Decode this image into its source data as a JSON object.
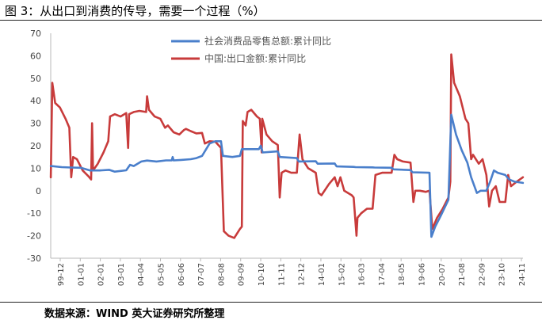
{
  "header": {
    "title": "图 3：从出口到消费的传导，需要一个过程（%）"
  },
  "footer": {
    "source": "数据来源：WIND 英大证券研究所整理"
  },
  "chart_data": {
    "type": "line",
    "title": "图 3：从出口到消费的传导，需要一个过程（%）",
    "xlabel": "",
    "ylabel": "",
    "ylim": [
      -30,
      70
    ],
    "yticks": [
      -30,
      -20,
      -10,
      0,
      10,
      20,
      30,
      40,
      50,
      60,
      70
    ],
    "x_start": 1999.917,
    "x_end": 2024.833,
    "x_tick_labels": [
      "99-12",
      "01-01",
      "02-01",
      "03-01",
      "04-04",
      "05-05",
      "06-06",
      "07-07",
      "08-08",
      "09-09",
      "10-10",
      "11-11",
      "12-12",
      "14-01",
      "15-02",
      "16-03",
      "17-04",
      "18-05",
      "19-06",
      "20-07",
      "21-08",
      "22-09",
      "23-10",
      "24-11"
    ],
    "legend_position": "top-center",
    "series": [
      {
        "name": "社会消费品零售总额:累计同比",
        "color": "#4a7fcb",
        "points": [
          [
            1999.92,
            11
          ],
          [
            2000.5,
            10.5
          ],
          [
            2001.0,
            10.3
          ],
          [
            2001.5,
            10.2
          ],
          [
            2002.0,
            9
          ],
          [
            2002.5,
            9
          ],
          [
            2003.0,
            9.3
          ],
          [
            2003.3,
            8.5
          ],
          [
            2003.9,
            9.1
          ],
          [
            2004.1,
            11.5
          ],
          [
            2004.3,
            11
          ],
          [
            2004.7,
            13
          ],
          [
            2005.0,
            13.4
          ],
          [
            2005.5,
            13
          ],
          [
            2006.0,
            13.5
          ],
          [
            2006.3,
            13.5
          ],
          [
            2006.35,
            15
          ],
          [
            2006.4,
            13.5
          ],
          [
            2006.8,
            13.7
          ],
          [
            2007.3,
            14
          ],
          [
            2007.6,
            14.5
          ],
          [
            2007.9,
            15.5
          ],
          [
            2008.3,
            21
          ],
          [
            2008.6,
            22
          ],
          [
            2008.9,
            22
          ],
          [
            2009.0,
            15.5
          ],
          [
            2009.5,
            15
          ],
          [
            2009.9,
            15.5
          ],
          [
            2010.0,
            18.5
          ],
          [
            2010.5,
            18.5
          ],
          [
            2010.9,
            18.5
          ],
          [
            2011.0,
            20
          ],
          [
            2011.1,
            17
          ],
          [
            2011.9,
            17.5
          ],
          [
            2012.0,
            15
          ],
          [
            2012.9,
            14.5
          ],
          [
            2013.0,
            13
          ],
          [
            2013.9,
            13.1
          ],
          [
            2014.0,
            12
          ],
          [
            2014.9,
            12.1
          ],
          [
            2015.0,
            10.8
          ],
          [
            2015.9,
            10.6
          ],
          [
            2016.0,
            10.5
          ],
          [
            2016.9,
            10.4
          ],
          [
            2017.0,
            10.3
          ],
          [
            2017.9,
            10.2
          ],
          [
            2018.0,
            9.5
          ],
          [
            2018.9,
            9.2
          ],
          [
            2019.0,
            8.2
          ],
          [
            2019.9,
            8
          ],
          [
            2020.0,
            -20.5
          ],
          [
            2020.2,
            -16
          ],
          [
            2020.5,
            -11
          ],
          [
            2020.9,
            -4
          ],
          [
            2021.05,
            33.8
          ],
          [
            2021.3,
            25
          ],
          [
            2021.6,
            18
          ],
          [
            2021.9,
            12.5
          ],
          [
            2022.1,
            6
          ],
          [
            2022.4,
            -1
          ],
          [
            2022.6,
            0
          ],
          [
            2022.9,
            0
          ],
          [
            2023.1,
            4
          ],
          [
            2023.3,
            9
          ],
          [
            2023.5,
            8
          ],
          [
            2023.9,
            7
          ],
          [
            2024.1,
            5
          ],
          [
            2024.4,
            4
          ],
          [
            2024.83,
            3.5
          ]
        ]
      },
      {
        "name": "中国:出口金额:累计同比",
        "color": "#c83b3b",
        "points": [
          [
            1999.92,
            6
          ],
          [
            2000.0,
            48
          ],
          [
            2000.15,
            39
          ],
          [
            2000.4,
            37
          ],
          [
            2000.7,
            32
          ],
          [
            2000.9,
            28
          ],
          [
            2001.0,
            6
          ],
          [
            2001.1,
            15
          ],
          [
            2001.3,
            14
          ],
          [
            2001.6,
            9
          ],
          [
            2001.9,
            6.5
          ],
          [
            2002.05,
            5
          ],
          [
            2002.1,
            30
          ],
          [
            2002.15,
            9
          ],
          [
            2002.4,
            12
          ],
          [
            2002.7,
            17
          ],
          [
            2002.95,
            22
          ],
          [
            2003.05,
            33
          ],
          [
            2003.3,
            34
          ],
          [
            2003.6,
            33
          ],
          [
            2003.9,
            34.5
          ],
          [
            2004.0,
            19
          ],
          [
            2004.05,
            34
          ],
          [
            2004.3,
            35
          ],
          [
            2004.6,
            35.5
          ],
          [
            2004.95,
            35
          ],
          [
            2005.0,
            42
          ],
          [
            2005.1,
            36
          ],
          [
            2005.4,
            33
          ],
          [
            2005.7,
            32
          ],
          [
            2005.95,
            28
          ],
          [
            2006.1,
            29
          ],
          [
            2006.4,
            26
          ],
          [
            2006.7,
            25
          ],
          [
            2006.95,
            27
          ],
          [
            2007.05,
            27.5
          ],
          [
            2007.3,
            26.5
          ],
          [
            2007.6,
            25.5
          ],
          [
            2007.9,
            25.7
          ],
          [
            2008.05,
            21
          ],
          [
            2008.3,
            22
          ],
          [
            2008.6,
            21.8
          ],
          [
            2008.9,
            19
          ],
          [
            2009.05,
            -18
          ],
          [
            2009.3,
            -20
          ],
          [
            2009.6,
            -21
          ],
          [
            2009.9,
            -17
          ],
          [
            2010.0,
            -16
          ],
          [
            2010.05,
            31
          ],
          [
            2010.2,
            29
          ],
          [
            2010.3,
            35
          ],
          [
            2010.5,
            36
          ],
          [
            2010.8,
            33
          ],
          [
            2010.95,
            32
          ],
          [
            2011.05,
            17
          ],
          [
            2011.08,
            32
          ],
          [
            2011.3,
            25
          ],
          [
            2011.6,
            22
          ],
          [
            2011.9,
            20.3
          ],
          [
            2012.0,
            -3
          ],
          [
            2012.1,
            8
          ],
          [
            2012.3,
            9
          ],
          [
            2012.6,
            8
          ],
          [
            2012.9,
            8
          ],
          [
            2013.05,
            25
          ],
          [
            2013.2,
            14
          ],
          [
            2013.5,
            10
          ],
          [
            2013.9,
            8
          ],
          [
            2014.05,
            -1
          ],
          [
            2014.2,
            -2
          ],
          [
            2014.6,
            3
          ],
          [
            2014.9,
            6
          ],
          [
            2015.05,
            2
          ],
          [
            2015.2,
            6
          ],
          [
            2015.4,
            0
          ],
          [
            2015.8,
            -2
          ],
          [
            2015.9,
            -3
          ],
          [
            2016.05,
            -20
          ],
          [
            2016.1,
            -12
          ],
          [
            2016.3,
            -10
          ],
          [
            2016.6,
            -8
          ],
          [
            2016.9,
            -8
          ],
          [
            2017.05,
            7
          ],
          [
            2017.4,
            8
          ],
          [
            2017.9,
            8
          ],
          [
            2018.05,
            16
          ],
          [
            2018.2,
            14
          ],
          [
            2018.5,
            13
          ],
          [
            2018.9,
            12.5
          ],
          [
            2019.05,
            -5
          ],
          [
            2019.15,
            0
          ],
          [
            2019.4,
            0
          ],
          [
            2019.7,
            -0.5
          ],
          [
            2019.9,
            0
          ],
          [
            2020.05,
            -17
          ],
          [
            2020.3,
            -12
          ],
          [
            2020.6,
            -8
          ],
          [
            2020.9,
            -3
          ],
          [
            2021.0,
            4
          ],
          [
            2021.05,
            60.6
          ],
          [
            2021.2,
            48
          ],
          [
            2021.5,
            42
          ],
          [
            2021.8,
            32
          ],
          [
            2021.95,
            30
          ],
          [
            2022.1,
            14
          ],
          [
            2022.2,
            16
          ],
          [
            2022.5,
            12
          ],
          [
            2022.7,
            14
          ],
          [
            2022.9,
            7
          ],
          [
            2023.05,
            -7
          ],
          [
            2023.2,
            0
          ],
          [
            2023.4,
            2
          ],
          [
            2023.6,
            -5
          ],
          [
            2023.9,
            -5
          ],
          [
            2024.05,
            7
          ],
          [
            2024.2,
            2
          ],
          [
            2024.5,
            4
          ],
          [
            2024.83,
            6
          ]
        ]
      }
    ]
  }
}
